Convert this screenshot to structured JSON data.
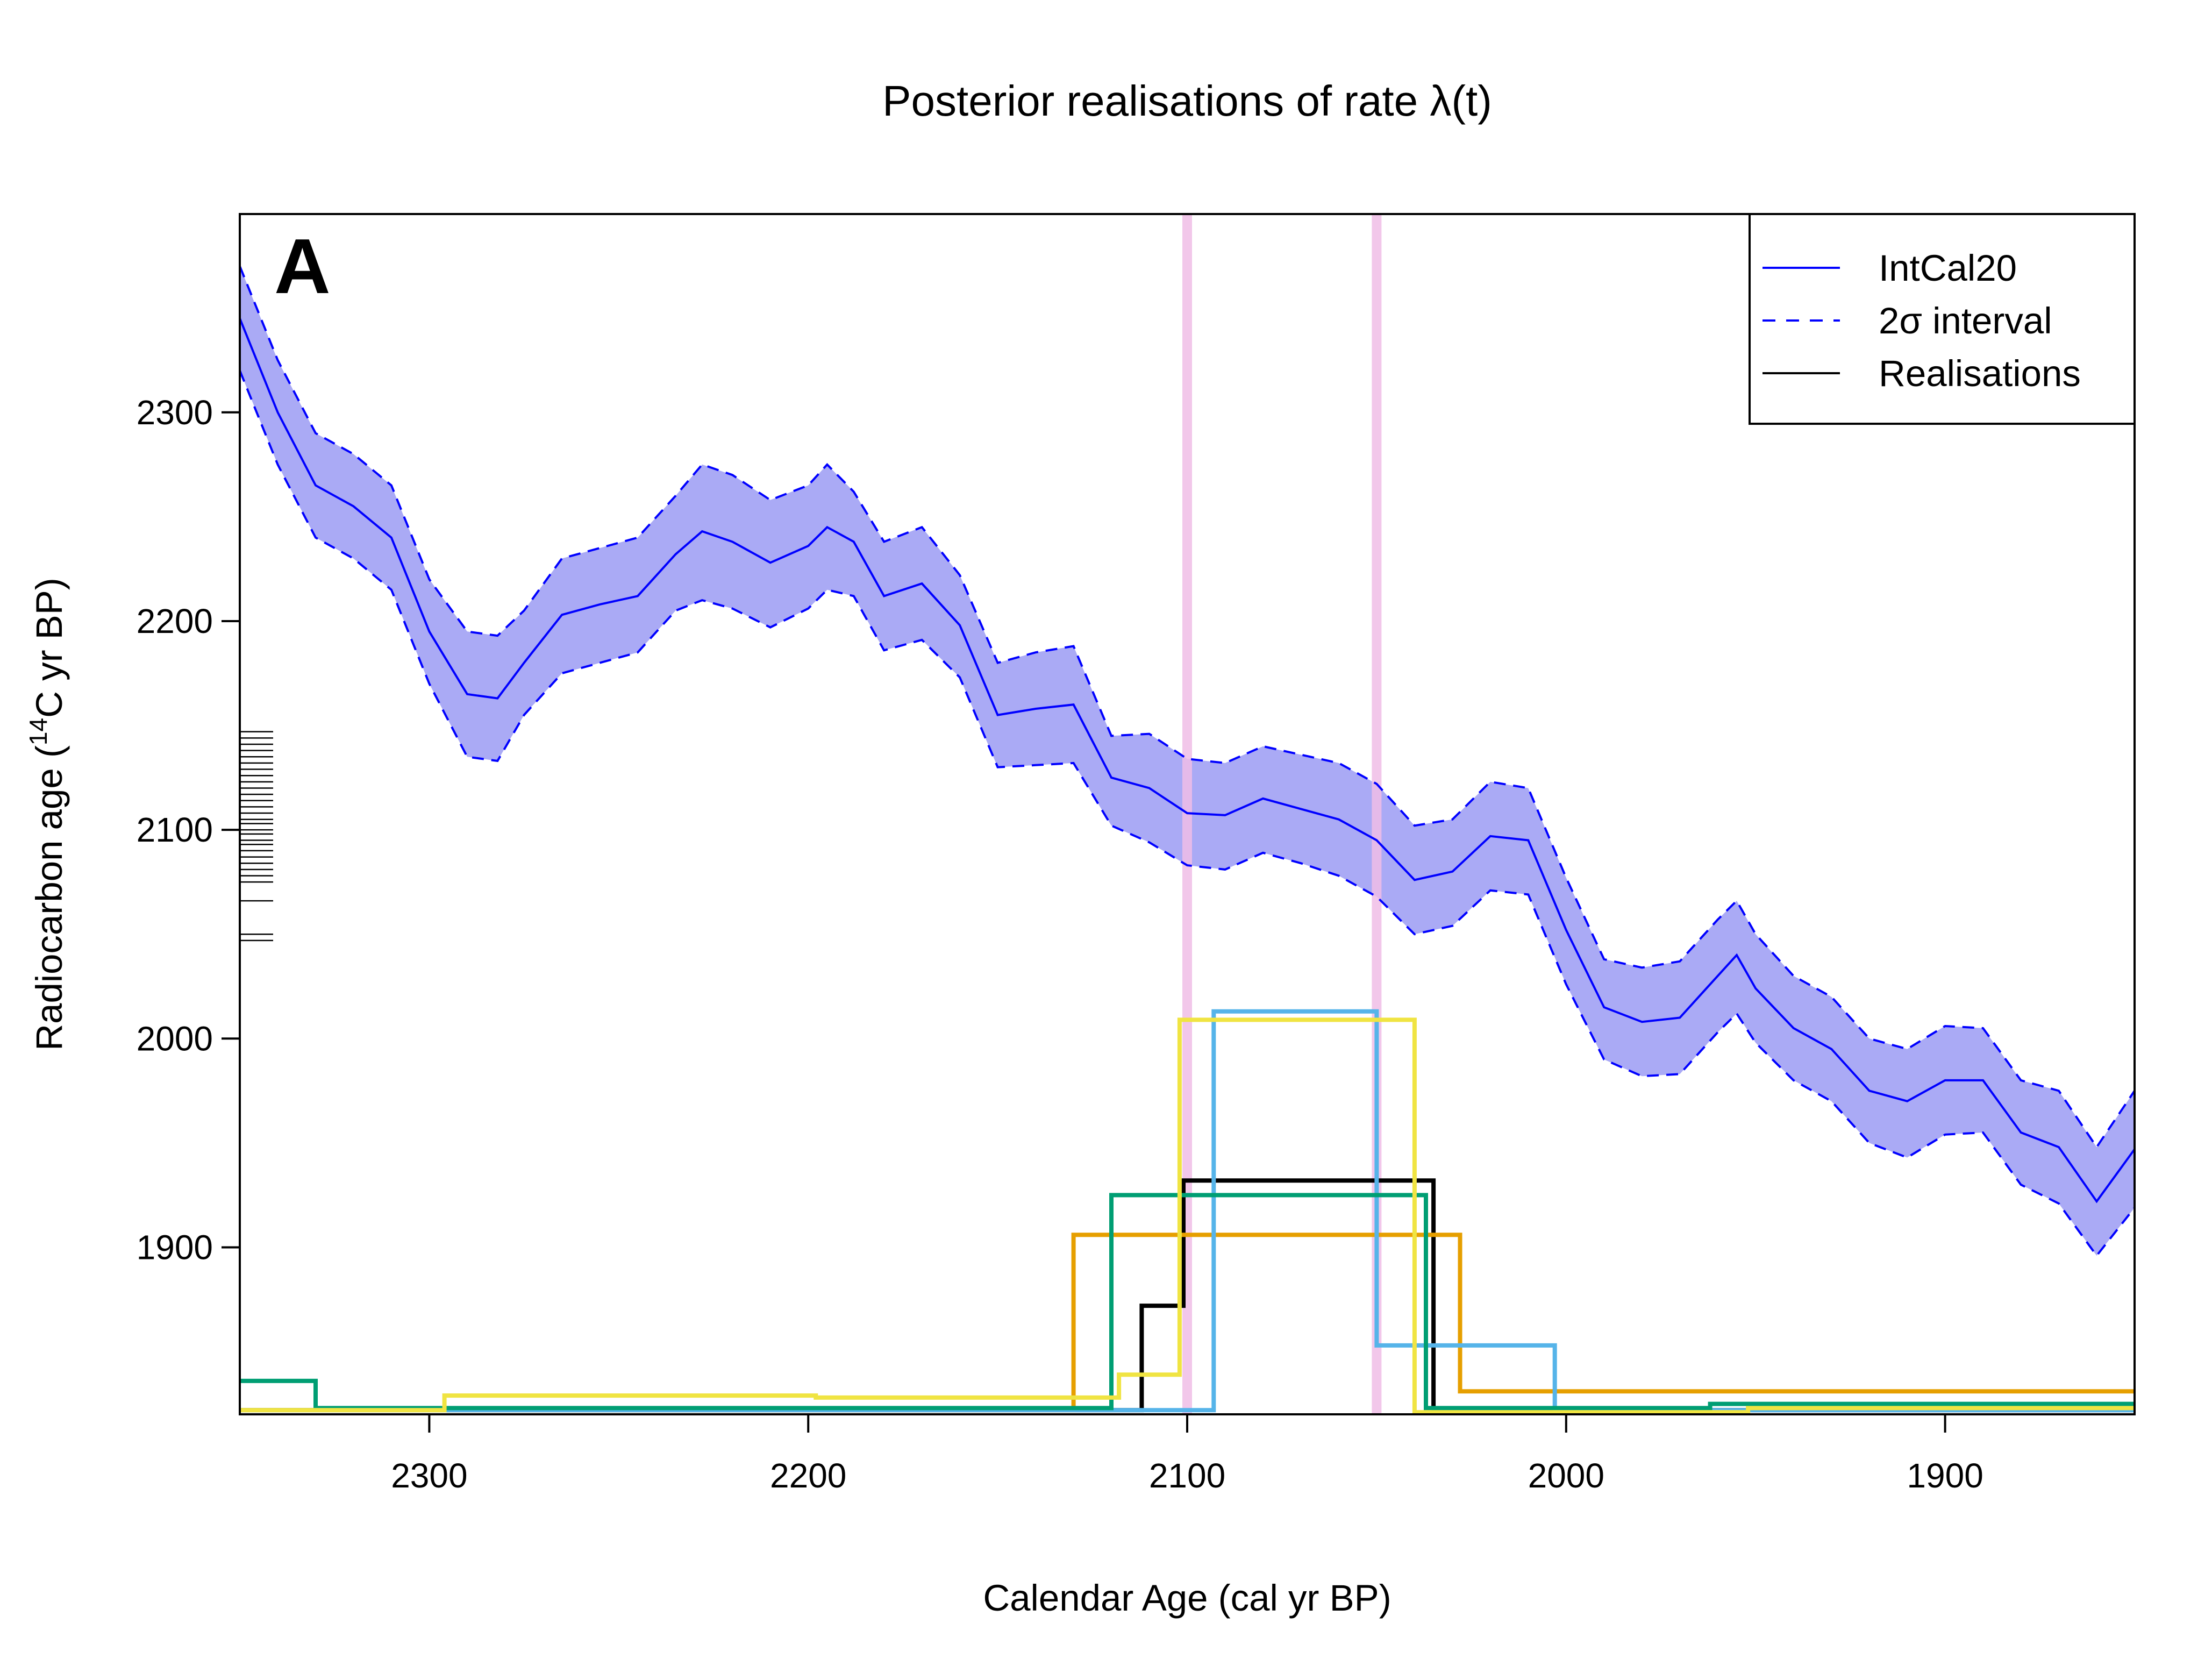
{
  "chart_data": {
    "type": "line",
    "title": "Posterior realisations of rate λ(t)",
    "panel_label": "A",
    "xlabel": "Calendar Age (cal yr BP)",
    "ylabel_prefix": "Radiocarbon age (",
    "ylabel_superscript": "14",
    "ylabel_suffix": "C yr BP)",
    "xlim": [
      2350,
      1850
    ],
    "ylim": [
      1820,
      2395
    ],
    "x_ticks": [
      2300,
      2200,
      2100,
      2000,
      1900
    ],
    "y_ticks": [
      1900,
      2000,
      2100,
      2200,
      2300
    ],
    "grid": false,
    "legend": {
      "position": "top-right",
      "entries": [
        {
          "label": "IntCal20",
          "style": "solid",
          "color": "#0000ff"
        },
        {
          "label": "2σ interval",
          "style": "dashed",
          "color": "#0000ff"
        },
        {
          "label": "Realisations",
          "style": "solid",
          "color": "#000000"
        }
      ]
    },
    "colors": {
      "curve": "#0000ff",
      "band_fill": "#aaaaf5",
      "highlight": "#f0bde6",
      "rug": "#000000"
    },
    "calibration_curve": {
      "name": "IntCal20",
      "x": [
        2350,
        2340,
        2330,
        2320,
        2310,
        2300,
        2290,
        2282,
        2275,
        2265,
        2255,
        2245,
        2235,
        2228,
        2220,
        2210,
        2200,
        2195,
        2188,
        2180,
        2170,
        2160,
        2150,
        2140,
        2130,
        2120,
        2110,
        2100,
        2090,
        2080,
        2070,
        2060,
        2050,
        2040,
        2030,
        2020,
        2010,
        2000,
        1990,
        1980,
        1970,
        1960,
        1955,
        1950,
        1940,
        1930,
        1920,
        1910,
        1900,
        1890,
        1880,
        1870,
        1860,
        1850
      ],
      "mean": [
        2345,
        2300,
        2265,
        2255,
        2240,
        2195,
        2165,
        2163,
        2180,
        2203,
        2208,
        2212,
        2232,
        2243,
        2238,
        2228,
        2236,
        2245,
        2238,
        2212,
        2218,
        2198,
        2155,
        2158,
        2160,
        2125,
        2120,
        2108,
        2107,
        2115,
        2110,
        2105,
        2095,
        2076,
        2080,
        2097,
        2095,
        2052,
        2015,
        2008,
        2010,
        2030,
        2040,
        2024,
        2005,
        1995,
        1975,
        1970,
        1980,
        1980,
        1955,
        1948,
        1922,
        1947
      ],
      "upper": [
        2370,
        2325,
        2290,
        2280,
        2265,
        2220,
        2195,
        2193,
        2205,
        2230,
        2235,
        2240,
        2260,
        2275,
        2270,
        2258,
        2265,
        2275,
        2262,
        2238,
        2245,
        2222,
        2180,
        2185,
        2188,
        2145,
        2146,
        2134,
        2132,
        2140,
        2136,
        2132,
        2122,
        2102,
        2105,
        2123,
        2120,
        2077,
        2038,
        2034,
        2037,
        2057,
        2066,
        2050,
        2030,
        2020,
        2000,
        1995,
        2006,
        2005,
        1980,
        1975,
        1948,
        1975
      ],
      "lower": [
        2320,
        2275,
        2240,
        2230,
        2215,
        2170,
        2135,
        2133,
        2155,
        2175,
        2180,
        2185,
        2205,
        2210,
        2206,
        2197,
        2206,
        2215,
        2212,
        2186,
        2191,
        2173,
        2130,
        2131,
        2132,
        2102,
        2094,
        2083,
        2081,
        2089,
        2084,
        2078,
        2068,
        2050,
        2054,
        2071,
        2069,
        2026,
        1990,
        1982,
        1983,
        2003,
        2012,
        1998,
        1980,
        1970,
        1950,
        1943,
        1954,
        1955,
        1930,
        1921,
        1896,
        1919
      ]
    },
    "highlight_lines": [
      2100,
      2050
    ],
    "observations": [
      2147,
      2144,
      2141,
      2138,
      2135,
      2132,
      2129,
      2126,
      2123,
      2120,
      2117,
      2114,
      2111,
      2108,
      2105,
      2103,
      2100,
      2098,
      2095,
      2093,
      2090,
      2087,
      2084,
      2081,
      2078,
      2075,
      2066,
      2050,
      2047
    ],
    "realisations": [
      {
        "color": "#000000",
        "x": [
          2350,
          2112,
          2112,
          2101,
          2101,
          2035,
          2035,
          1850
        ],
        "y": [
          1822,
          1822,
          1872,
          1872,
          1932,
          1932,
          1822,
          1822
        ]
      },
      {
        "color": "#e69f00",
        "x": [
          2350,
          2130,
          2130,
          2028,
          2028,
          1850
        ],
        "y": [
          1822,
          1822,
          1906,
          1906,
          1831,
          1831
        ]
      },
      {
        "color": "#56b4e9",
        "x": [
          2350,
          2093,
          2093,
          2050,
          2050,
          2003,
          2003,
          1850
        ],
        "y": [
          1822,
          1822,
          2013,
          2013,
          1853,
          1853,
          1822,
          1822
        ]
      },
      {
        "color": "#009e73",
        "x": [
          2350,
          2330,
          2330,
          2120,
          2120,
          2037,
          2037,
          1962,
          1962,
          1850
        ],
        "y": [
          1836,
          1836,
          1823,
          1823,
          1925,
          1925,
          1823,
          1823,
          1825,
          1825
        ]
      },
      {
        "color": "#f0e442",
        "x": [
          2350,
          2296,
          2296,
          2198,
          2198,
          2118,
          2118,
          2102,
          2102,
          2040,
          2040,
          1952,
          1952,
          1850
        ],
        "y": [
          1822,
          1822,
          1829,
          1829,
          1828,
          1828,
          1839,
          1839,
          2009,
          2009,
          1821,
          1821,
          1823,
          1823
        ]
      }
    ]
  }
}
